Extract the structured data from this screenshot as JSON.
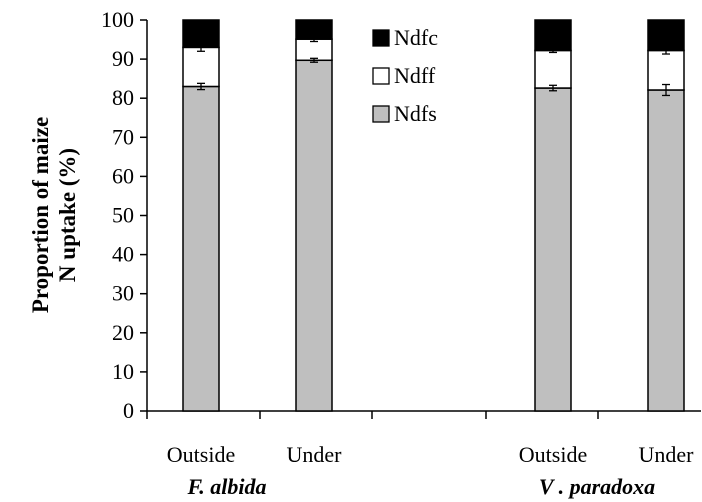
{
  "chart_data": {
    "type": "bar",
    "stacked": true,
    "categories": [
      "Outside",
      "Under",
      "Outside",
      "Under"
    ],
    "groups": [
      {
        "label": "F. albida",
        "categories": [
          "Outside",
          "Under"
        ]
      },
      {
        "label": "V . paradoxa",
        "categories": [
          "Outside",
          "Under"
        ]
      }
    ],
    "series": [
      {
        "name": "Ndfs",
        "values": [
          83.0,
          89.7,
          82.6,
          82.1
        ],
        "errors": [
          0.8,
          0.5,
          0.7,
          1.4
        ],
        "color": "#bfbfbf"
      },
      {
        "name": "Ndff",
        "values": [
          10.0,
          5.4,
          9.6,
          10.1
        ],
        "errors": [
          1.0,
          0.6,
          0.5,
          0.9
        ],
        "color": "#ffffff"
      },
      {
        "name": "Ndfc",
        "values": [
          7.0,
          4.9,
          7.8,
          7.8
        ],
        "errors": [
          0,
          0,
          0,
          0
        ],
        "color": "#000000"
      }
    ],
    "legend_order": [
      "Ndfc",
      "Ndff",
      "Ndfs"
    ],
    "ylabel_lines": [
      "Proportion of maize",
      "N uptake (%)"
    ],
    "xlabel": "",
    "title": "",
    "ylim": [
      0,
      100
    ],
    "yticks": [
      0,
      10,
      20,
      30,
      40,
      50,
      60,
      70,
      80,
      90,
      100
    ],
    "grid": false,
    "legend_position": "top-center"
  }
}
